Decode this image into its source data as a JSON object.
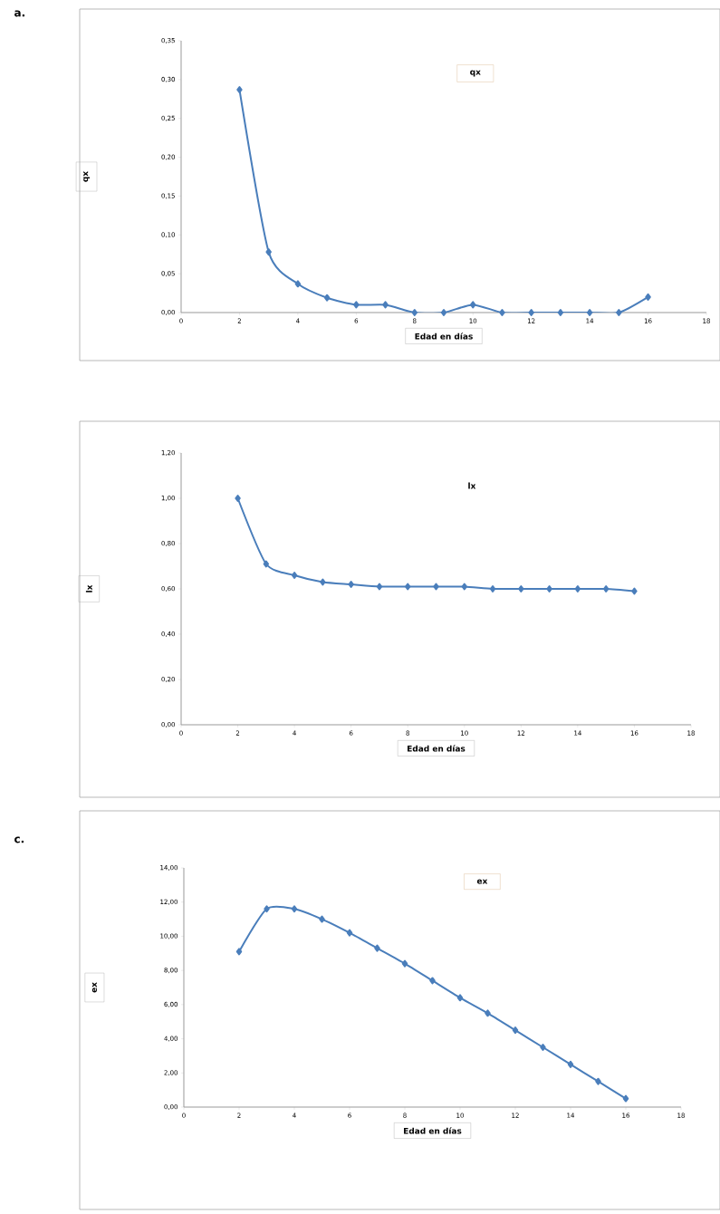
{
  "chart_data": [
    {
      "type": "line",
      "title": "qx",
      "xlabel": "Edad en días",
      "ylabel": "qx",
      "annotations": [
        "a."
      ],
      "color": "#4a7ebb",
      "marker": "diamond",
      "line_style": "solid",
      "x": [
        2,
        3,
        4,
        5,
        6,
        7,
        8,
        9,
        10,
        11,
        12,
        13,
        14,
        15,
        16
      ],
      "values": [
        0.287,
        0.078,
        0.037,
        0.019,
        0.01,
        0.01,
        0,
        0,
        0.01,
        0,
        0,
        0,
        0,
        0,
        0.02
      ],
      "xlim": [
        0,
        18
      ],
      "xticks": [
        0,
        2,
        4,
        6,
        8,
        10,
        12,
        14,
        16,
        18
      ],
      "ylim": [
        0,
        0.35
      ],
      "yticks": [
        {
          "value": 0,
          "label": "0,00"
        },
        {
          "value": 0.05,
          "label": "0,05"
        },
        {
          "value": 0.1,
          "label": "0,10"
        },
        {
          "value": 0.15,
          "label": "0,15"
        },
        {
          "value": 0.2,
          "label": "0,20"
        },
        {
          "value": 0.25,
          "label": "0,25"
        },
        {
          "value": 0.3,
          "label": "0,30"
        },
        {
          "value": 0.35,
          "label": "0,35"
        }
      ]
    },
    {
      "type": "line",
      "title": "lx",
      "xlabel": "Edad en días",
      "ylabel": "lx",
      "color": "#4a7ebb",
      "marker": "diamond",
      "line_style": "solid",
      "x": [
        2,
        3,
        4,
        5,
        6,
        7,
        8,
        9,
        10,
        11,
        12,
        13,
        14,
        15,
        16
      ],
      "values": [
        1.0,
        0.71,
        0.66,
        0.63,
        0.62,
        0.61,
        0.61,
        0.61,
        0.61,
        0.6,
        0.6,
        0.6,
        0.6,
        0.6,
        0.59
      ],
      "xlim": [
        0,
        18
      ],
      "xticks": [
        0,
        2,
        4,
        6,
        8,
        10,
        12,
        14,
        16,
        18
      ],
      "ylim": [
        0,
        1.2
      ],
      "yticks": [
        {
          "value": 0,
          "label": "0,00"
        },
        {
          "value": 0.2,
          "label": "0,20"
        },
        {
          "value": 0.4,
          "label": "0,40"
        },
        {
          "value": 0.6,
          "label": "0,60"
        },
        {
          "value": 0.8,
          "label": "0,80"
        },
        {
          "value": 1.0,
          "label": "1,00"
        },
        {
          "value": 1.2,
          "label": "1,20"
        }
      ]
    },
    {
      "type": "line",
      "title": "ex",
      "xlabel": "Edad en días",
      "ylabel": "ex",
      "annotations": [
        "c."
      ],
      "color": "#4a7ebb",
      "marker": "diamond",
      "line_style": "solid",
      "x": [
        2,
        3,
        4,
        5,
        6,
        7,
        8,
        9,
        10,
        11,
        12,
        13,
        14,
        15,
        16
      ],
      "values": [
        9.1,
        11.6,
        11.6,
        11.0,
        10.2,
        9.3,
        8.4,
        7.4,
        6.4,
        5.5,
        4.5,
        3.5,
        2.5,
        1.5,
        0.5
      ],
      "xlim": [
        0,
        18
      ],
      "xticks": [
        0,
        2,
        4,
        6,
        8,
        10,
        12,
        14,
        16,
        18
      ],
      "ylim": [
        0,
        14
      ],
      "yticks": [
        {
          "value": 0,
          "label": "0,00"
        },
        {
          "value": 2,
          "label": "2,00"
        },
        {
          "value": 4,
          "label": "4,00"
        },
        {
          "value": 6,
          "label": "6,00"
        },
        {
          "value": 8,
          "label": "8,00"
        },
        {
          "value": 10,
          "label": "10,00"
        },
        {
          "value": 12,
          "label": "12,00"
        },
        {
          "value": 14,
          "label": "14,00"
        }
      ]
    }
  ]
}
